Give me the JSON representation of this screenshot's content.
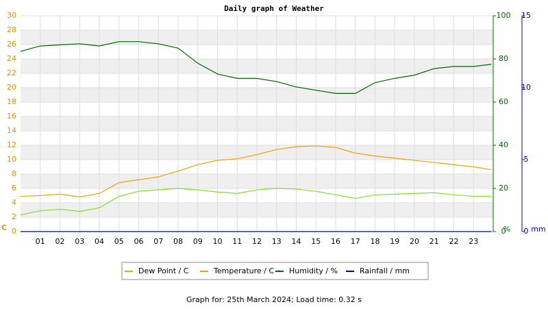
{
  "chart_data": {
    "type": "line",
    "title": "Daily graph of Weather",
    "x": [
      0,
      1,
      2,
      3,
      4,
      5,
      6,
      7,
      8,
      9,
      10,
      11,
      12,
      13,
      14,
      15,
      16,
      17,
      18,
      19,
      20,
      21,
      22,
      23,
      23.9
    ],
    "xlim": [
      0,
      24
    ],
    "xticks": [
      {
        "value": 1,
        "label": "01"
      },
      {
        "value": 2,
        "label": "02"
      },
      {
        "value": 3,
        "label": "03"
      },
      {
        "value": 4,
        "label": "04"
      },
      {
        "value": 5,
        "label": "05"
      },
      {
        "value": 6,
        "label": "06"
      },
      {
        "value": 7,
        "label": "07"
      },
      {
        "value": 8,
        "label": "08"
      },
      {
        "value": 9,
        "label": "09"
      },
      {
        "value": 10,
        "label": "10"
      },
      {
        "value": 11,
        "label": "11"
      },
      {
        "value": 12,
        "label": "12"
      },
      {
        "value": 13,
        "label": "13"
      },
      {
        "value": 14,
        "label": "14"
      },
      {
        "value": 15,
        "label": "15"
      },
      {
        "value": 16,
        "label": "16"
      },
      {
        "value": 17,
        "label": "17"
      },
      {
        "value": 18,
        "label": "18"
      },
      {
        "value": 19,
        "label": "19"
      },
      {
        "value": 20,
        "label": "20"
      },
      {
        "value": 21,
        "label": "21"
      },
      {
        "value": 22,
        "label": "22"
      },
      {
        "value": 23,
        "label": "23"
      }
    ],
    "ylim": [
      0,
      30
    ],
    "yticks": [
      0,
      2,
      4,
      6,
      8,
      10,
      12,
      14,
      16,
      18,
      20,
      22,
      24,
      26,
      28,
      30
    ],
    "ylabel": "C",
    "y2lim": [
      0,
      100
    ],
    "y2ticks": [
      0,
      20,
      40,
      60,
      80,
      100
    ],
    "y2label": "%",
    "y3lim": [
      0,
      15
    ],
    "y3ticks": [
      0,
      5,
      10,
      15
    ],
    "y3label": "mm",
    "grid": true,
    "series": [
      {
        "name": "Dew Point / C",
        "color": "#80e020",
        "values": [
          2.3,
          2.9,
          3.1,
          2.8,
          3.3,
          4.9,
          5.6,
          5.8,
          6.0,
          5.8,
          5.5,
          5.3,
          5.8,
          6.0,
          5.9,
          5.6,
          5.1,
          4.6,
          5.1,
          5.2,
          5.3,
          5.4,
          5.1,
          4.9,
          4.9
        ]
      },
      {
        "name": "Temperature / C",
        "color": "#f0a000",
        "values": [
          4.9,
          5.0,
          5.2,
          4.8,
          5.3,
          6.8,
          7.2,
          7.6,
          8.4,
          9.3,
          9.9,
          10.1,
          10.7,
          11.4,
          11.8,
          11.9,
          11.7,
          10.9,
          10.5,
          10.2,
          9.9,
          9.6,
          9.3,
          9.0,
          8.6
        ]
      },
      {
        "name": "Humidity / %",
        "color": "#006400",
        "axis": "y2",
        "values": [
          83.5,
          86,
          86.5,
          87,
          86,
          88,
          88,
          87,
          85,
          78,
          73,
          71,
          71,
          69.5,
          67,
          65.5,
          64,
          64,
          69,
          71,
          72.5,
          75.5,
          76.5,
          76.5,
          77.5
        ]
      },
      {
        "name": "Rainfall / mm",
        "color": "#0000a0",
        "axis": "y3",
        "values": [
          0,
          0,
          0,
          0,
          0,
          0,
          0,
          0,
          0,
          0,
          0,
          0,
          0,
          0,
          0,
          0,
          0,
          0,
          0,
          0,
          0,
          0,
          0,
          0,
          0
        ]
      }
    ],
    "footer": "Graph for: 25th March 2024; Load time: 0.32 s"
  }
}
